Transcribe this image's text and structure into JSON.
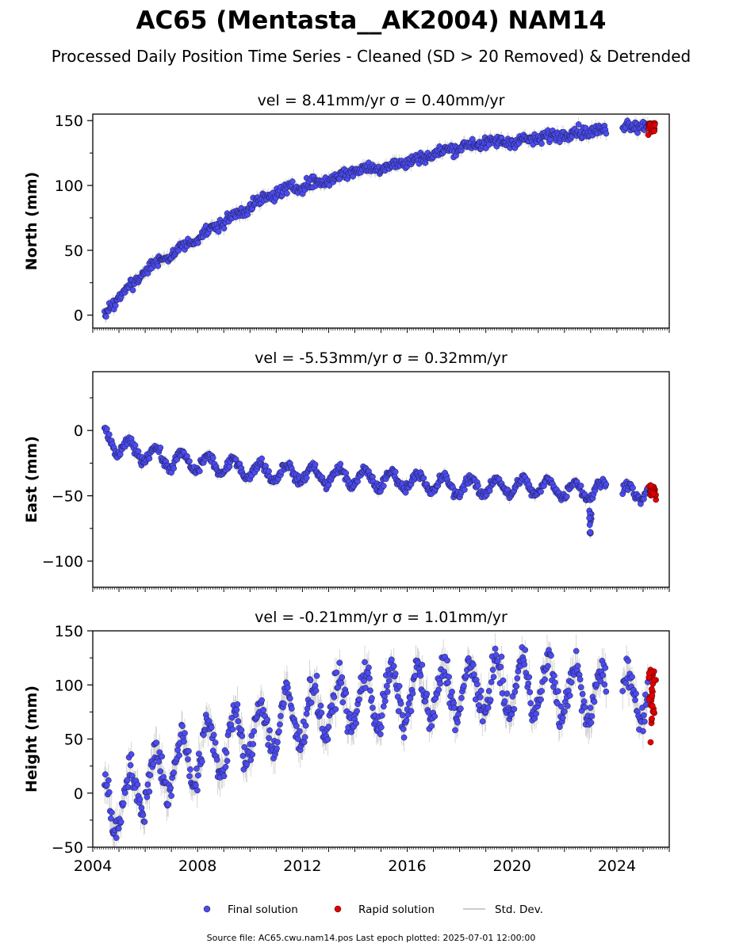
{
  "title": "AC65 (Mentasta__AK2004) NAM14",
  "subtitle": "Processed Daily Position Time Series - Cleaned (SD > 20 Removed) & Detrended",
  "footer": "Source file: AC65.cwu.nam14.pos  Last epoch plotted: 2025-07-01 12:00:00",
  "legend": {
    "final": "Final solution",
    "rapid": "Rapid solution",
    "std": "Std. Dev."
  },
  "colors": {
    "final": "#4b4bf0",
    "rapid": "#e00000",
    "std": "#b8b8b8"
  },
  "chart_data": [
    {
      "type": "scatter",
      "name": "north",
      "title": "vel = 8.41mm/yr   σ = 0.40mm/yr",
      "ylabel": "North (mm)",
      "xlim": [
        2004,
        2026
      ],
      "ylim": [
        -10,
        155
      ],
      "yticks": [
        0,
        50,
        100,
        150
      ],
      "trend": [
        [
          2004.4,
          0
        ],
        [
          2005,
          14
        ],
        [
          2006,
          34
        ],
        [
          2007,
          47
        ],
        [
          2008,
          60
        ],
        [
          2009,
          72
        ],
        [
          2010,
          84
        ],
        [
          2011,
          94
        ],
        [
          2012,
          100
        ],
        [
          2013,
          104
        ],
        [
          2014,
          112
        ],
        [
          2015,
          114
        ],
        [
          2016,
          118
        ],
        [
          2017,
          124
        ],
        [
          2018,
          130
        ],
        [
          2019,
          133
        ],
        [
          2020,
          134
        ],
        [
          2021,
          136
        ],
        [
          2022,
          140
        ],
        [
          2023,
          142
        ],
        [
          2023.6,
          142
        ],
        [
          2024.2,
          146
        ],
        [
          2025.2,
          147
        ]
      ],
      "noise": 3.2,
      "seasonal": 1.0,
      "rapid": {
        "x": [
          2025.2,
          2025.5
        ],
        "y": [
          139,
          148
        ]
      },
      "gap": [
        2023.6,
        2024.2
      ]
    },
    {
      "type": "scatter",
      "name": "east",
      "title": "vel = -5.53mm/yr   σ = 0.32mm/yr",
      "ylabel": "East (mm)",
      "xlim": [
        2004,
        2026
      ],
      "ylim": [
        -120,
        45
      ],
      "yticks": [
        -100,
        -50,
        0
      ],
      "trend": [
        [
          2004.4,
          -3
        ],
        [
          2005,
          -13
        ],
        [
          2006,
          -17
        ],
        [
          2007,
          -23
        ],
        [
          2008,
          -25
        ],
        [
          2009,
          -27
        ],
        [
          2010,
          -30
        ],
        [
          2011,
          -32
        ],
        [
          2012,
          -33
        ],
        [
          2013,
          -35
        ],
        [
          2014,
          -36
        ],
        [
          2015,
          -38
        ],
        [
          2016,
          -38
        ],
        [
          2017,
          -41
        ],
        [
          2018,
          -43
        ],
        [
          2019,
          -43
        ],
        [
          2020,
          -43
        ],
        [
          2021,
          -43
        ],
        [
          2022,
          -45
        ],
        [
          2023,
          -46
        ],
        [
          2023.6,
          -46
        ],
        [
          2024.2,
          -47
        ],
        [
          2025.2,
          -47
        ]
      ],
      "noise": 2.6,
      "seasonal": 6.5,
      "rapid": {
        "x": [
          2025.2,
          2025.5
        ],
        "y": [
          -53,
          -42
        ]
      },
      "gap": [
        2023.6,
        2024.2
      ]
    },
    {
      "type": "scatter",
      "name": "height",
      "title": "vel = -0.21mm/yr   σ = 1.01mm/yr",
      "ylabel": "Height (mm)",
      "xlim": [
        2004,
        2026
      ],
      "ylim": [
        -50,
        150
      ],
      "yticks": [
        -50,
        0,
        50,
        100,
        150
      ],
      "xticks": [
        2004,
        2008,
        2012,
        2016,
        2020,
        2024
      ],
      "trend": [
        [
          2004.4,
          -10
        ],
        [
          2005,
          -10
        ],
        [
          2006,
          10
        ],
        [
          2007,
          25
        ],
        [
          2008,
          35
        ],
        [
          2009,
          45
        ],
        [
          2010,
          55
        ],
        [
          2011,
          65
        ],
        [
          2012,
          72
        ],
        [
          2013,
          80
        ],
        [
          2014,
          85
        ],
        [
          2015,
          88
        ],
        [
          2016,
          90
        ],
        [
          2017,
          92
        ],
        [
          2018,
          95
        ],
        [
          2019,
          97
        ],
        [
          2020,
          98
        ],
        [
          2021,
          100
        ],
        [
          2022,
          95
        ],
        [
          2023,
          90
        ],
        [
          2023.6,
          90
        ],
        [
          2024.2,
          88
        ],
        [
          2025.2,
          95
        ]
      ],
      "noise": 10,
      "seasonal": 25,
      "rapid": {
        "x": [
          2025.2,
          2025.5
        ],
        "y": [
          47,
          114
        ]
      },
      "gap": [
        2023.6,
        2024.2
      ]
    }
  ]
}
